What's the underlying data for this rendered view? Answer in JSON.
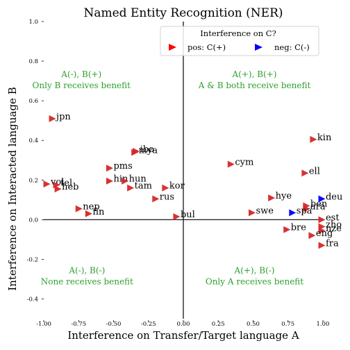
{
  "chart_data": {
    "type": "scatter",
    "title": "Named Entity Recognition (NER)",
    "xlabel": "Interference on Transfer/Target language A",
    "ylabel": "Interference on Interacted language B",
    "xlim": [
      -1.0,
      1.0
    ],
    "ylim": [
      -0.5,
      1.0
    ],
    "xticks": [
      "-1.00",
      "-0.75",
      "-0.50",
      "-0.25",
      "0.00",
      "0.25",
      "0.50",
      "0.75",
      "1.00"
    ],
    "yticks": [
      "-0.4",
      "-0.2",
      "0.0",
      "0.2",
      "0.4",
      "0.6",
      "0.8",
      "1.0"
    ],
    "grid": false,
    "legend": {
      "title": "Interference on C?",
      "placement": "top-center",
      "items": [
        {
          "label": "pos: C(+)",
          "color": "#ff0000"
        },
        {
          "label": "neg: C(-)",
          "color": "#0000ff"
        }
      ]
    },
    "quadrant_labels": [
      {
        "line1": "A(-), B(+)",
        "line2": "Only B receives benefit",
        "qx": -0.73,
        "qy": 0.72
      },
      {
        "line1": "A(+), B(+)",
        "line2": "A & B both receive benefit",
        "qx": 0.51,
        "qy": 0.72
      },
      {
        "line1": "A(-), B(-)",
        "line2": "None receives benefit",
        "qx": -0.69,
        "qy": -0.27
      },
      {
        "line1": "A(+), B(-)",
        "line2": "Only A receives benefit",
        "qx": 0.51,
        "qy": -0.27
      }
    ],
    "series": [
      {
        "name": "pos: C(+)",
        "color": "#d62728",
        "points": [
          {
            "label": "jpn",
            "x": -0.94,
            "y": 0.51
          },
          {
            "label": "ibo",
            "x": -0.34,
            "y": 0.345
          },
          {
            "label": "mya",
            "x": -0.35,
            "y": 0.34
          },
          {
            "label": "pms",
            "x": -0.53,
            "y": 0.26
          },
          {
            "label": "hin",
            "x": -0.53,
            "y": 0.195
          },
          {
            "label": "hun",
            "x": -0.42,
            "y": 0.195
          },
          {
            "label": "tam",
            "x": -0.38,
            "y": 0.16
          },
          {
            "label": "kor",
            "x": -0.13,
            "y": 0.16
          },
          {
            "label": "rus",
            "x": -0.2,
            "y": 0.105
          },
          {
            "label": "vol",
            "x": -0.98,
            "y": 0.18
          },
          {
            "label": "tel",
            "x": -0.91,
            "y": 0.175
          },
          {
            "label": "heb",
            "x": -0.9,
            "y": 0.155
          },
          {
            "label": "nep",
            "x": -0.75,
            "y": 0.055
          },
          {
            "label": "fin",
            "x": -0.68,
            "y": 0.03
          },
          {
            "label": "bul",
            "x": -0.05,
            "y": 0.015
          },
          {
            "label": "cym",
            "x": 0.34,
            "y": 0.28
          },
          {
            "label": "kin",
            "x": 0.93,
            "y": 0.405
          },
          {
            "label": "ell",
            "x": 0.87,
            "y": 0.235
          },
          {
            "label": "hye",
            "x": 0.63,
            "y": 0.11
          },
          {
            "label": "ben",
            "x": 0.88,
            "y": 0.07
          },
          {
            "label": "ara",
            "x": 0.88,
            "y": 0.055
          },
          {
            "label": "swe",
            "x": 0.49,
            "y": 0.035
          },
          {
            "label": "est",
            "x": 0.99,
            "y": 0.0
          },
          {
            "label": "bre",
            "x": 0.74,
            "y": -0.05
          },
          {
            "label": "zho",
            "x": 0.99,
            "y": -0.035
          },
          {
            "label": "nze",
            "x": 0.99,
            "y": -0.055
          },
          {
            "label": "eng",
            "x": 0.92,
            "y": -0.08
          },
          {
            "label": "fra",
            "x": 0.99,
            "y": -0.13
          }
        ]
      },
      {
        "name": "neg: C(-)",
        "color": "#0000ff",
        "points": [
          {
            "label": "deu",
            "x": 0.99,
            "y": 0.105
          },
          {
            "label": "spa",
            "x": 0.78,
            "y": 0.035
          }
        ]
      }
    ]
  }
}
